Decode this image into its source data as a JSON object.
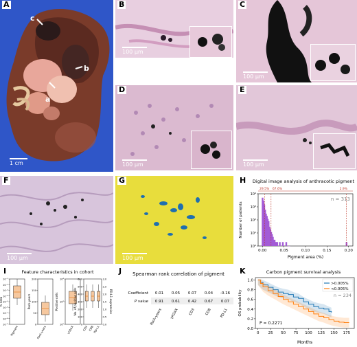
{
  "panels": {
    "A": {
      "label": "A",
      "annotations": [
        "c",
        "b",
        "a"
      ],
      "scale": "1 cm"
    },
    "B": {
      "label": "B",
      "scale": "100 μm"
    },
    "C": {
      "label": "C",
      "scale": "100 μm"
    },
    "D": {
      "label": "D",
      "scale": "100 μm"
    },
    "E": {
      "label": "E",
      "scale": "100 μm"
    },
    "F": {
      "label": "F",
      "scale": "100 μm"
    },
    "G": {
      "label": "G",
      "scale": "100 μm"
    },
    "H": {
      "label": "H"
    },
    "I": {
      "label": "I"
    },
    "J": {
      "label": "J"
    },
    "K": {
      "label": "K"
    }
  },
  "chart_data": [
    {
      "id": "H",
      "type": "bar",
      "title": "Digital image analysis of anthracotic pigment",
      "xlabel": "Pigment area (%)",
      "ylabel": "Number of patients",
      "annotation": "n = 313",
      "threshold_labels": [
        "29.5%",
        "67.6%",
        "2.9%"
      ],
      "threshold_x": [
        0.005,
        0.02,
        0.195
      ],
      "x_ticks": [
        "0.00",
        "0.05",
        "0.10",
        "0.15",
        "0.20"
      ],
      "xlim": [
        -0.01,
        0.21
      ],
      "y_ticks": [
        "10⁰",
        "10¹",
        "10²",
        "10³",
        "10⁴"
      ],
      "y_scale": "log",
      "ylim": [
        1,
        10000
      ],
      "bins_x": [
        0.0,
        0.002,
        0.004,
        0.006,
        0.008,
        0.01,
        0.012,
        0.014,
        0.016,
        0.018,
        0.02,
        0.022,
        0.024,
        0.026,
        0.028,
        0.03,
        0.032,
        0.034,
        0.04,
        0.047,
        0.055,
        0.06,
        0.062,
        0.195
      ],
      "bins_y": [
        5000,
        3000,
        1500,
        600,
        300,
        200,
        120,
        80,
        30,
        20,
        12,
        8,
        5,
        3,
        3,
        2,
        2,
        2,
        2,
        2,
        2,
        1,
        1,
        2
      ]
    },
    {
      "id": "I",
      "type": "box",
      "title": "Feature characteristics in cohort",
      "subplots": [
        {
          "categories": [
            "Pigment"
          ],
          "ylabel": "% Area",
          "y_ticks": [
            "10⁻¹",
            "10⁻²",
            "10⁻³",
            "10⁻⁴",
            "10⁻⁵",
            "10⁻⁶",
            "10⁻⁷",
            "10⁻⁸",
            "10⁻⁹"
          ],
          "y_scale": "log"
        },
        {
          "categories": [
            "Pack-years"
          ],
          "ylabel": "Pack-years",
          "y_ticks": [
            "0",
            "50",
            "100",
            "150",
            "200"
          ],
          "ylim": [
            0,
            200
          ],
          "median": 40,
          "q1": 20,
          "q3": 60,
          "whisker_low": 0,
          "whisker_high": 120
        },
        {
          "categories": [
            "γH2AX"
          ],
          "ylabel": "Positive cells",
          "y_ticks": [
            "10⁰",
            "10²",
            "10⁴"
          ],
          "y_scale": "log"
        },
        {
          "categories": [
            "CD3",
            "CD8",
            "PD-L1"
          ],
          "ylabel": "No. of positive cells",
          "ylabel_right": "PD-L1 expression",
          "y_ticks": [
            "0",
            "100",
            "200",
            "300",
            "400",
            "500",
            "600"
          ],
          "y_ticks_right": [
            "0.0",
            "0.5",
            "1.0",
            "1.5",
            "2.0",
            "2.5",
            "3.0"
          ],
          "ylim": [
            0,
            600
          ]
        }
      ]
    },
    {
      "id": "J",
      "type": "table",
      "title": "Spearman rank correlation of pigment",
      "row_labels": [
        "Coefficient",
        "P value"
      ],
      "columns": [
        "Pack-years",
        "γH2AX",
        "CD3",
        "CD8",
        "PD-L1"
      ],
      "coefficient": [
        "0.01",
        "0.05",
        "0.07",
        "0.04",
        "-0.16"
      ],
      "p_value": [
        "0.91",
        "0.61",
        "0.42",
        "0.67",
        "0.07"
      ]
    },
    {
      "id": "K",
      "type": "line",
      "title": "Carbon pigment survival analysis",
      "xlabel": "Months",
      "ylabel": "OS probability",
      "x_ticks": [
        "0",
        "25",
        "50",
        "75",
        "100",
        "125",
        "150",
        "175"
      ],
      "y_ticks": [
        "0.0",
        "0.2",
        "0.4",
        "0.6",
        "0.8",
        "1.0"
      ],
      "xlim": [
        -5,
        190
      ],
      "ylim": [
        0,
        1.05
      ],
      "annotation": "n = 234",
      "p_text": "P = 0.2271",
      "series": [
        {
          "name": ">0.005%",
          "color": "#1f77b4",
          "x": [
            0,
            5,
            10,
            20,
            30,
            40,
            50,
            60,
            70,
            80,
            90,
            100,
            110,
            120,
            130,
            140,
            145
          ],
          "y": [
            1.0,
            0.95,
            0.9,
            0.85,
            0.8,
            0.75,
            0.72,
            0.7,
            0.65,
            0.62,
            0.55,
            0.5,
            0.45,
            0.42,
            0.4,
            0.35,
            0.33
          ]
        },
        {
          "name": "<0.005%",
          "color": "#ff7f0e",
          "x": [
            0,
            5,
            10,
            20,
            30,
            40,
            50,
            60,
            70,
            80,
            90,
            100,
            110,
            120,
            130,
            140,
            150,
            160,
            170,
            180
          ],
          "y": [
            1.0,
            0.93,
            0.86,
            0.78,
            0.72,
            0.66,
            0.6,
            0.55,
            0.5,
            0.45,
            0.4,
            0.35,
            0.3,
            0.25,
            0.22,
            0.18,
            0.15,
            0.13,
            0.12,
            0.12
          ]
        }
      ]
    }
  ]
}
